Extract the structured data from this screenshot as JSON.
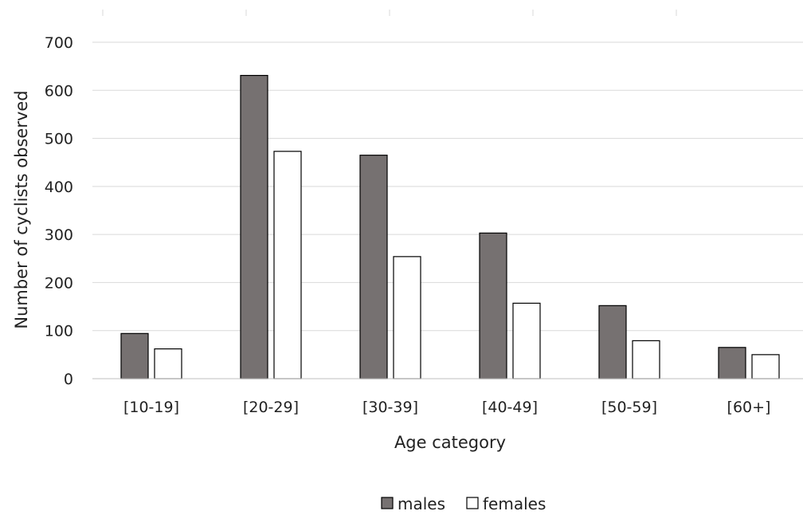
{
  "chart_data": {
    "type": "bar",
    "title": "",
    "xlabel": "Age category",
    "ylabel": "Number of cyclists observed",
    "categories": [
      "[10-19]",
      "[20-29]",
      "[30-39]",
      "[40-49]",
      "[50-59]",
      "[60+]"
    ],
    "series": [
      {
        "name": "males",
        "values": [
          94,
          631,
          465,
          303,
          152,
          65
        ],
        "color": "#767171"
      },
      {
        "name": "females",
        "values": [
          62,
          473,
          254,
          157,
          79,
          50
        ],
        "color": "#ffffff"
      }
    ],
    "ylim": [
      0,
      700
    ],
    "yticks": [
      "0",
      "100",
      "200",
      "300",
      "400",
      "500",
      "600",
      "700"
    ],
    "grid": true,
    "legend_position": "bottom"
  }
}
